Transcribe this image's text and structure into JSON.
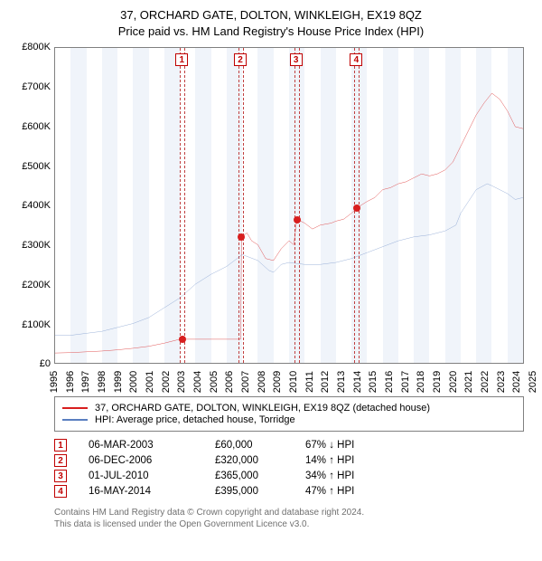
{
  "title": {
    "line1": "37, ORCHARD GATE, DOLTON, WINKLEIGH, EX19 8QZ",
    "line2": "Price paid vs. HM Land Registry's House Price Index (HPI)",
    "fontsize": 13
  },
  "chart": {
    "type": "line",
    "background_color": "#ffffff",
    "border_color": "#808080",
    "grid_color": "#f0f4fa",
    "ylim": [
      0,
      800000
    ],
    "ytick_step": 100000,
    "yticks": [
      "£0",
      "£100K",
      "£200K",
      "£300K",
      "£400K",
      "£500K",
      "£600K",
      "£700K",
      "£800K"
    ],
    "xlim": [
      1995,
      2025
    ],
    "xticks": [
      1995,
      1996,
      1997,
      1998,
      1999,
      2000,
      2001,
      2002,
      2003,
      2004,
      2005,
      2006,
      2007,
      2008,
      2009,
      2010,
      2011,
      2012,
      2013,
      2014,
      2015,
      2016,
      2017,
      2018,
      2019,
      2020,
      2021,
      2022,
      2023,
      2024,
      2025
    ],
    "shaded_years": [
      1996,
      1998,
      2000,
      2002,
      2004,
      2006,
      2008,
      2010,
      2012,
      2014,
      2016,
      2018,
      2020,
      2022,
      2024
    ],
    "series": [
      {
        "name": "37, ORCHARD GATE, DOLTON, WINKLEIGH, EX19 8QZ (detached house)",
        "color": "#d81e1e",
        "line_width": 1.5,
        "data": [
          [
            1995,
            25000
          ],
          [
            1996,
            26000
          ],
          [
            1997,
            28000
          ],
          [
            1998,
            30000
          ],
          [
            1999,
            33000
          ],
          [
            2000,
            37000
          ],
          [
            2001,
            42000
          ],
          [
            2002,
            50000
          ],
          [
            2003,
            60000
          ],
          [
            2003.2,
            60000
          ],
          [
            2006.9,
            60000
          ],
          [
            2006.95,
            320000
          ],
          [
            2007.3,
            330000
          ],
          [
            2007.6,
            310000
          ],
          [
            2008,
            300000
          ],
          [
            2008.5,
            265000
          ],
          [
            2009,
            260000
          ],
          [
            2009.5,
            290000
          ],
          [
            2010,
            310000
          ],
          [
            2010.3,
            300000
          ],
          [
            2010.5,
            365000
          ],
          [
            2011,
            355000
          ],
          [
            2011.5,
            340000
          ],
          [
            2012,
            350000
          ],
          [
            2012.7,
            355000
          ],
          [
            2013,
            360000
          ],
          [
            2013.5,
            365000
          ],
          [
            2014,
            380000
          ],
          [
            2014.4,
            395000
          ],
          [
            2015,
            410000
          ],
          [
            2015.5,
            420000
          ],
          [
            2016,
            440000
          ],
          [
            2016.5,
            445000
          ],
          [
            2017,
            455000
          ],
          [
            2017.5,
            460000
          ],
          [
            2018,
            470000
          ],
          [
            2018.5,
            480000
          ],
          [
            2019,
            475000
          ],
          [
            2019.5,
            480000
          ],
          [
            2020,
            490000
          ],
          [
            2020.5,
            510000
          ],
          [
            2021,
            550000
          ],
          [
            2021.5,
            590000
          ],
          [
            2022,
            630000
          ],
          [
            2022.5,
            660000
          ],
          [
            2023,
            685000
          ],
          [
            2023.5,
            670000
          ],
          [
            2024,
            640000
          ],
          [
            2024.5,
            600000
          ],
          [
            2025,
            595000
          ]
        ]
      },
      {
        "name": "HPI: Average price, detached house, Torridge",
        "color": "#5a7fc0",
        "line_width": 1.2,
        "data": [
          [
            1995,
            70000
          ],
          [
            1996,
            70000
          ],
          [
            1997,
            75000
          ],
          [
            1998,
            80000
          ],
          [
            1999,
            90000
          ],
          [
            2000,
            100000
          ],
          [
            2001,
            115000
          ],
          [
            2002,
            140000
          ],
          [
            2003,
            165000
          ],
          [
            2004,
            200000
          ],
          [
            2005,
            225000
          ],
          [
            2006,
            245000
          ],
          [
            2007,
            275000
          ],
          [
            2008,
            260000
          ],
          [
            2008.7,
            235000
          ],
          [
            2009,
            230000
          ],
          [
            2009.5,
            250000
          ],
          [
            2010,
            255000
          ],
          [
            2011,
            250000
          ],
          [
            2012,
            250000
          ],
          [
            2013,
            255000
          ],
          [
            2014,
            265000
          ],
          [
            2015,
            280000
          ],
          [
            2016,
            295000
          ],
          [
            2017,
            310000
          ],
          [
            2018,
            320000
          ],
          [
            2019,
            325000
          ],
          [
            2020,
            335000
          ],
          [
            2020.7,
            350000
          ],
          [
            2021,
            380000
          ],
          [
            2021.5,
            410000
          ],
          [
            2022,
            440000
          ],
          [
            2022.7,
            455000
          ],
          [
            2023,
            450000
          ],
          [
            2024,
            430000
          ],
          [
            2024.5,
            415000
          ],
          [
            2025,
            420000
          ]
        ]
      }
    ],
    "sale_markers": [
      {
        "n": "1",
        "year": 2003.18,
        "price": 60000
      },
      {
        "n": "2",
        "year": 2006.93,
        "price": 320000
      },
      {
        "n": "3",
        "year": 2010.5,
        "price": 365000
      },
      {
        "n": "4",
        "year": 2014.37,
        "price": 395000
      }
    ],
    "sale_dot_color": "#d81e1e",
    "label_fontsize": 11
  },
  "legend": {
    "items": [
      {
        "color": "#d81e1e",
        "label": "37, ORCHARD GATE, DOLTON, WINKLEIGH, EX19 8QZ (detached house)"
      },
      {
        "color": "#5a7fc0",
        "label": "HPI: Average price, detached house, Torridge"
      }
    ]
  },
  "sales_table": {
    "rows": [
      {
        "n": "1",
        "date": "06-MAR-2003",
        "price": "£60,000",
        "pct": "67% ↓ HPI"
      },
      {
        "n": "2",
        "date": "06-DEC-2006",
        "price": "£320,000",
        "pct": "14% ↑ HPI"
      },
      {
        "n": "3",
        "date": "01-JUL-2010",
        "price": "£365,000",
        "pct": "34% ↑ HPI"
      },
      {
        "n": "4",
        "date": "16-MAY-2014",
        "price": "£395,000",
        "pct": "47% ↑ HPI"
      }
    ]
  },
  "footer": {
    "line1": "Contains HM Land Registry data © Crown copyright and database right 2024.",
    "line2": "This data is licensed under the Open Government Licence v3.0."
  }
}
